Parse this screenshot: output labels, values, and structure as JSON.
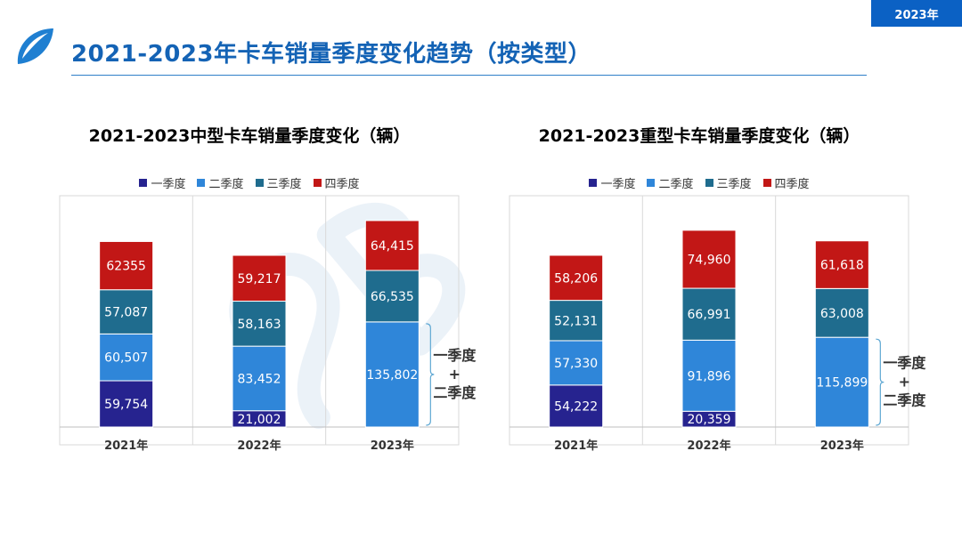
{
  "header": {
    "year_badge": "2023年",
    "page_title": "2021-2023年卡车销量季度变化趋势（按类型）"
  },
  "colors": {
    "q1": "#26238f",
    "q2": "#2f86d9",
    "q3": "#1f6c8e",
    "q4": "#c21716",
    "brand": "#1463b5"
  },
  "icons": {
    "logo": "leaf-logo-icon",
    "watermark": "watermark-logo"
  },
  "chart_data": [
    {
      "type": "bar",
      "stacked": true,
      "title": "2021-2023中型卡车销量季度变化（辆）",
      "categories": [
        "2021年",
        "2022年",
        "2023年"
      ],
      "series": [
        {
          "name": "一季度",
          "values": [
            59754,
            21002,
            null
          ],
          "labels": [
            "59,754",
            "21,002",
            ""
          ]
        },
        {
          "name": "二季度",
          "values": [
            60507,
            83452,
            135802
          ],
          "labels": [
            "60,507",
            "83,452",
            "135,802"
          ]
        },
        {
          "name": "三季度",
          "values": [
            57087,
            58163,
            66535
          ],
          "labels": [
            "57,087",
            "58,163",
            "66,535"
          ]
        },
        {
          "name": "四季度",
          "values": [
            62355,
            59217,
            64415
          ],
          "labels": [
            "62355",
            "59,217",
            "64,415"
          ]
        }
      ],
      "annotation": {
        "category": "2023年",
        "lines": [
          "一季度",
          "+",
          "二季度"
        ]
      },
      "legend": "top",
      "grid": false,
      "ylim": [
        0,
        300000
      ]
    },
    {
      "type": "bar",
      "stacked": true,
      "title": "2021-2023重型卡车销量季度变化（辆）",
      "categories": [
        "2021年",
        "2022年",
        "2023年"
      ],
      "series": [
        {
          "name": "一季度",
          "values": [
            54222,
            20359,
            null
          ],
          "labels": [
            "54,222",
            "20,359",
            ""
          ]
        },
        {
          "name": "二季度",
          "values": [
            57330,
            91896,
            115899
          ],
          "labels": [
            "57,330",
            "91,896",
            "115,899"
          ]
        },
        {
          "name": "三季度",
          "values": [
            52131,
            66991,
            63008
          ],
          "labels": [
            "52,131",
            "66,991",
            "63,008"
          ]
        },
        {
          "name": "四季度",
          "values": [
            58206,
            74960,
            61618
          ],
          "labels": [
            "58,206",
            "74,960",
            "61,618"
          ]
        }
      ],
      "annotation": {
        "category": "2023年",
        "lines": [
          "一季度",
          "+",
          "二季度"
        ]
      },
      "legend": "top",
      "grid": false,
      "ylim": [
        0,
        300000
      ]
    }
  ]
}
